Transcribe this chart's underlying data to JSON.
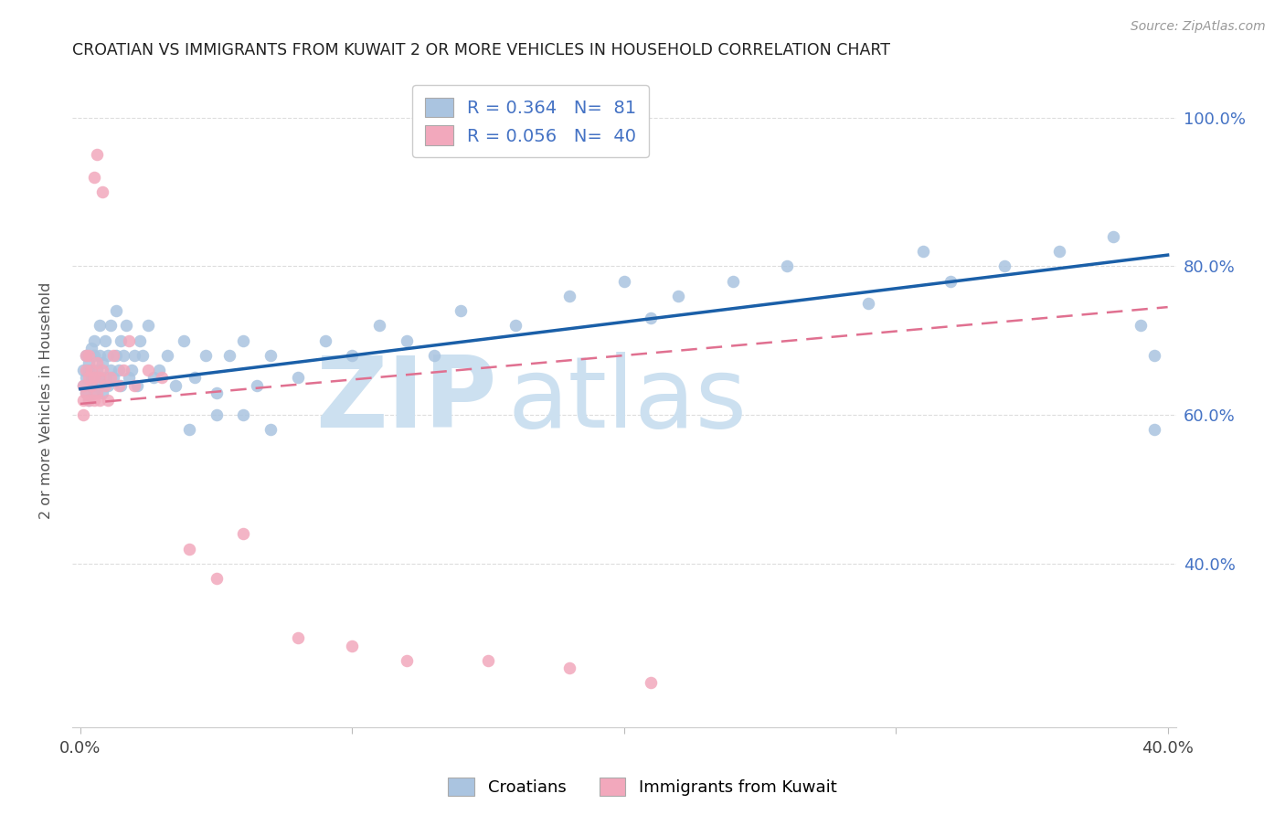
{
  "title": "CROATIAN VS IMMIGRANTS FROM KUWAIT 2 OR MORE VEHICLES IN HOUSEHOLD CORRELATION CHART",
  "source": "Source: ZipAtlas.com",
  "ylabel": "2 or more Vehicles in Household",
  "xlim": [
    -0.003,
    0.403
  ],
  "ylim": [
    0.18,
    1.06
  ],
  "y_ticks": [
    0.4,
    0.6,
    0.8,
    1.0
  ],
  "y_tick_labels": [
    "40.0%",
    "60.0%",
    "80.0%",
    "100.0%"
  ],
  "x_tick_positions": [
    0.0,
    0.1,
    0.2,
    0.3,
    0.4
  ],
  "x_tick_labels": [
    "0.0%",
    "",
    "",
    "",
    "40.0%"
  ],
  "blue_color": "#aac4e0",
  "pink_color": "#f2a8bc",
  "line_blue": "#1a5fa8",
  "line_pink": "#e07090",
  "right_tick_color": "#4472c4",
  "grid_color": "#dddddd",
  "watermark_color": "#cce0f0",
  "legend_blue_label": "R = 0.364   N=  81",
  "legend_pink_label": "R = 0.056   N=  40",
  "bottom_legend": [
    "Croatians",
    "Immigrants from Kuwait"
  ],
  "blue_x": [
    0.001,
    0.001,
    0.002,
    0.002,
    0.002,
    0.003,
    0.003,
    0.003,
    0.004,
    0.004,
    0.004,
    0.005,
    0.005,
    0.005,
    0.006,
    0.006,
    0.007,
    0.007,
    0.007,
    0.008,
    0.008,
    0.009,
    0.009,
    0.01,
    0.01,
    0.011,
    0.011,
    0.012,
    0.013,
    0.013,
    0.014,
    0.015,
    0.015,
    0.016,
    0.017,
    0.018,
    0.019,
    0.02,
    0.021,
    0.022,
    0.023,
    0.025,
    0.027,
    0.029,
    0.032,
    0.035,
    0.038,
    0.042,
    0.046,
    0.05,
    0.055,
    0.06,
    0.065,
    0.07,
    0.08,
    0.09,
    0.1,
    0.11,
    0.12,
    0.13,
    0.14,
    0.16,
    0.18,
    0.2,
    0.21,
    0.22,
    0.24,
    0.26,
    0.29,
    0.31,
    0.32,
    0.34,
    0.36,
    0.38,
    0.39,
    0.395,
    0.395,
    0.04,
    0.05,
    0.06,
    0.07
  ],
  "blue_y": [
    0.64,
    0.66,
    0.63,
    0.68,
    0.65,
    0.67,
    0.62,
    0.66,
    0.64,
    0.69,
    0.65,
    0.63,
    0.68,
    0.7,
    0.66,
    0.64,
    0.72,
    0.65,
    0.68,
    0.63,
    0.67,
    0.65,
    0.7,
    0.64,
    0.68,
    0.66,
    0.72,
    0.65,
    0.68,
    0.74,
    0.66,
    0.7,
    0.64,
    0.68,
    0.72,
    0.65,
    0.66,
    0.68,
    0.64,
    0.7,
    0.68,
    0.72,
    0.65,
    0.66,
    0.68,
    0.64,
    0.7,
    0.65,
    0.68,
    0.63,
    0.68,
    0.7,
    0.64,
    0.68,
    0.65,
    0.7,
    0.68,
    0.72,
    0.7,
    0.68,
    0.74,
    0.72,
    0.76,
    0.78,
    0.73,
    0.76,
    0.78,
    0.8,
    0.75,
    0.82,
    0.78,
    0.8,
    0.82,
    0.84,
    0.72,
    0.58,
    0.68,
    0.58,
    0.6,
    0.6,
    0.58
  ],
  "pink_x": [
    0.001,
    0.001,
    0.001,
    0.002,
    0.002,
    0.002,
    0.003,
    0.003,
    0.003,
    0.004,
    0.004,
    0.005,
    0.005,
    0.006,
    0.006,
    0.007,
    0.007,
    0.008,
    0.009,
    0.01,
    0.011,
    0.012,
    0.014,
    0.016,
    0.018,
    0.02,
    0.025,
    0.03,
    0.04,
    0.05,
    0.06,
    0.08,
    0.1,
    0.12,
    0.15,
    0.18,
    0.21,
    0.005,
    0.006,
    0.008
  ],
  "pink_y": [
    0.6,
    0.64,
    0.62,
    0.66,
    0.63,
    0.68,
    0.62,
    0.65,
    0.68,
    0.64,
    0.66,
    0.62,
    0.65,
    0.63,
    0.67,
    0.65,
    0.62,
    0.66,
    0.64,
    0.62,
    0.65,
    0.68,
    0.64,
    0.66,
    0.7,
    0.64,
    0.66,
    0.65,
    0.42,
    0.38,
    0.44,
    0.3,
    0.29,
    0.27,
    0.27,
    0.26,
    0.24,
    0.92,
    0.95,
    0.9
  ],
  "blue_line_x0": 0.0,
  "blue_line_x1": 0.4,
  "blue_line_y0": 0.635,
  "blue_line_y1": 0.815,
  "pink_line_x0": 0.0,
  "pink_line_x1": 0.4,
  "pink_line_y0": 0.615,
  "pink_line_y1": 0.745
}
